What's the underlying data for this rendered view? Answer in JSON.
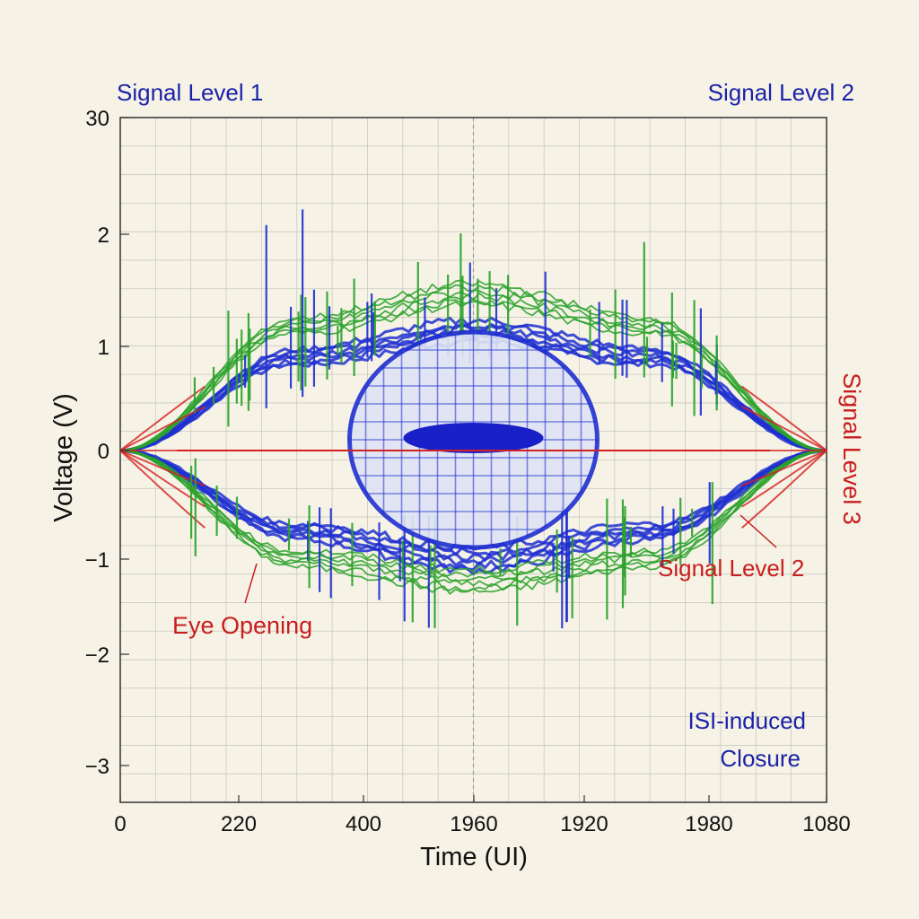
{
  "chart_data": {
    "type": "line",
    "title": "",
    "xlabel": "Time (UI)",
    "ylabel": "Voltage (V)",
    "x_tick_labels": [
      "0",
      "220",
      "400",
      "1960",
      "1920",
      "1980",
      "1080"
    ],
    "y_tick_labels": [
      "30",
      "2",
      "1",
      "0",
      "−1",
      "−2",
      "−3"
    ],
    "grid": true,
    "annotations": {
      "top_left": "Signal Level 1",
      "top_right": "Signal Level 2",
      "right_vertical": "Signal Level 3",
      "lower_right": "Signal Level 2",
      "eye_opening": "Eye Opening",
      "isi_line1": "ISI-induced",
      "isi_line2": "Closure"
    },
    "series": [
      {
        "color": "#1f2fd0",
        "x": [
          0,
          0.25,
          0.5,
          0.75,
          1
        ],
        "y": [
          0,
          0.9,
          1.15,
          0.9,
          0
        ]
      },
      {
        "color": "#1f2fd0",
        "x": [
          0,
          0.25,
          0.5,
          0.75,
          1
        ],
        "y": [
          0,
          -0.75,
          -1.0,
          -0.75,
          0
        ]
      },
      {
        "color": "#2aa12a",
        "x": [
          0,
          0.25,
          0.5,
          0.75,
          1
        ],
        "y": [
          0,
          1.2,
          1.5,
          1.2,
          0
        ]
      },
      {
        "color": "#2aa12a",
        "x": [
          0,
          0.25,
          0.5,
          0.75,
          1
        ],
        "y": [
          0,
          -1.0,
          -1.2,
          -1.0,
          0
        ]
      },
      {
        "color": "#d42020",
        "x": [
          0,
          1
        ],
        "y": [
          0,
          0
        ]
      }
    ],
    "colors": {
      "blue": "#1f2fd0",
      "green": "#2aa12a",
      "red": "#d42020",
      "background": "#f6f3e6",
      "grid": "#c9c9c0"
    }
  }
}
